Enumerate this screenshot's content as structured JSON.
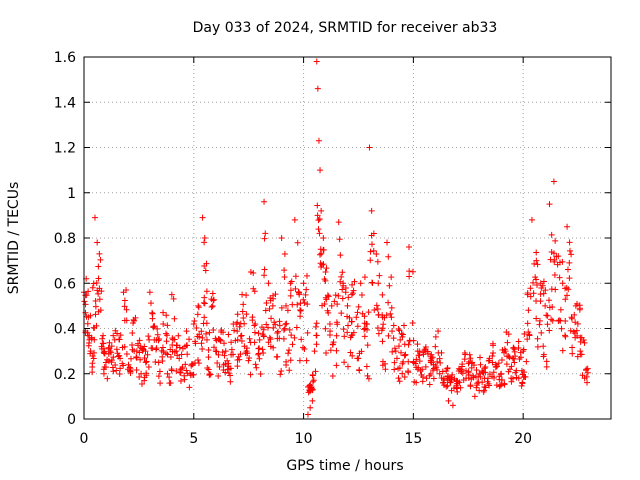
{
  "chart_data": {
    "type": "scatter",
    "title": "Day 033 of 2024, SRMTID for receiver ab33",
    "xlabel": "GPS time / hours",
    "ylabel": "SRMTID / TECUs",
    "xlim": [
      0,
      24
    ],
    "ylim": [
      0,
      1.6
    ],
    "x_ticks": [
      0,
      5,
      10,
      15,
      20
    ],
    "x_tick_labels": [
      "0",
      "5",
      "10",
      "15",
      "20"
    ],
    "y_ticks": [
      0,
      0.2,
      0.4,
      0.6,
      0.8,
      1.0,
      1.2,
      1.4,
      1.6
    ],
    "y_tick_labels": [
      "0",
      "0.2",
      "0.4",
      "0.6",
      "0.8",
      "1",
      "1.2",
      "1.4",
      "1.6"
    ],
    "grid": true,
    "marker": "+",
    "marker_color": "#ff0000",
    "series": [
      {
        "name": "SRMTID",
        "x": [
          0.0,
          0.1,
          0.2,
          0.3,
          0.4,
          0.5,
          0.6,
          0.7,
          0.8,
          0.9,
          1.0,
          1.2,
          1.4,
          1.6,
          1.8,
          2.0,
          2.2,
          2.4,
          2.6,
          2.8,
          3.0,
          3.2,
          3.4,
          3.6,
          3.8,
          4.0,
          4.2,
          4.4,
          4.6,
          4.8,
          5.0,
          5.2,
          5.4,
          5.5,
          5.6,
          5.8,
          6.0,
          6.2,
          6.4,
          6.6,
          6.8,
          7.0,
          7.2,
          7.4,
          7.6,
          7.8,
          8.0,
          8.2,
          8.4,
          8.6,
          8.8,
          9.0,
          9.2,
          9.4,
          9.6,
          9.8,
          10.0,
          10.2,
          10.3,
          10.4,
          10.5,
          10.6,
          10.65,
          10.7,
          10.75,
          10.8,
          10.9,
          11.0,
          11.2,
          11.4,
          11.6,
          11.8,
          12.0,
          12.2,
          12.4,
          12.6,
          12.8,
          13.0,
          13.1,
          13.2,
          13.4,
          13.6,
          13.8,
          14.0,
          14.2,
          14.4,
          14.6,
          14.8,
          15.0,
          15.2,
          15.4,
          15.6,
          15.8,
          16.0,
          16.2,
          16.4,
          16.6,
          16.8,
          17.0,
          17.2,
          17.4,
          17.6,
          17.8,
          18.0,
          18.2,
          18.4,
          18.6,
          18.8,
          19.0,
          19.2,
          19.4,
          19.6,
          19.8,
          20.0,
          20.2,
          20.4,
          20.6,
          20.8,
          21.0,
          21.2,
          21.4,
          21.6,
          21.8,
          22.0,
          22.2,
          22.4,
          22.6,
          22.8
        ],
        "y": [
          0.56,
          0.62,
          0.45,
          0.3,
          0.58,
          0.89,
          0.78,
          0.73,
          0.32,
          0.22,
          0.25,
          0.3,
          0.35,
          0.28,
          0.56,
          0.22,
          0.38,
          0.27,
          0.2,
          0.3,
          0.56,
          0.35,
          0.25,
          0.47,
          0.2,
          0.55,
          0.3,
          0.22,
          0.32,
          0.14,
          0.42,
          0.5,
          0.89,
          0.8,
          0.35,
          0.53,
          0.3,
          0.35,
          0.28,
          0.22,
          0.42,
          0.35,
          0.55,
          0.3,
          0.65,
          0.42,
          0.35,
          0.96,
          0.6,
          0.5,
          0.38,
          0.8,
          0.5,
          0.6,
          0.88,
          0.55,
          0.6,
          0.02,
          0.05,
          0.08,
          0.3,
          1.58,
          1.46,
          1.23,
          1.1,
          0.92,
          0.8,
          0.65,
          0.42,
          0.52,
          0.87,
          0.6,
          0.5,
          0.55,
          0.45,
          0.6,
          0.4,
          1.2,
          0.92,
          0.82,
          0.6,
          0.45,
          0.78,
          0.45,
          0.3,
          0.35,
          0.28,
          0.76,
          0.25,
          0.3,
          0.22,
          0.18,
          0.25,
          0.32,
          0.2,
          0.15,
          0.08,
          0.06,
          0.12,
          0.22,
          0.18,
          0.15,
          0.1,
          0.2,
          0.12,
          0.18,
          0.25,
          0.15,
          0.2,
          0.3,
          0.22,
          0.25,
          0.18,
          0.3,
          0.55,
          0.88,
          0.7,
          0.6,
          0.5,
          0.95,
          1.05,
          0.72,
          0.6,
          0.85,
          0.45,
          0.5,
          0.3,
          0.18
        ],
        "spread": [
          0.12,
          0.15,
          0.12,
          0.1,
          0.18,
          0.2,
          0.18,
          0.2,
          0.1,
          0.08,
          0.08,
          0.1,
          0.1,
          0.1,
          0.15,
          0.1,
          0.12,
          0.1,
          0.1,
          0.1,
          0.15,
          0.1,
          0.1,
          0.12,
          0.08,
          0.15,
          0.1,
          0.08,
          0.1,
          0.06,
          0.12,
          0.15,
          0.2,
          0.2,
          0.12,
          0.15,
          0.1,
          0.1,
          0.1,
          0.1,
          0.12,
          0.12,
          0.15,
          0.1,
          0.18,
          0.15,
          0.12,
          0.25,
          0.2,
          0.18,
          0.15,
          0.22,
          0.18,
          0.2,
          0.22,
          0.18,
          0.2,
          0.02,
          0.03,
          0.04,
          0.15,
          0.1,
          0.1,
          0.1,
          0.15,
          0.2,
          0.2,
          0.2,
          0.18,
          0.2,
          0.22,
          0.2,
          0.2,
          0.2,
          0.18,
          0.2,
          0.18,
          0.2,
          0.2,
          0.2,
          0.2,
          0.15,
          0.2,
          0.15,
          0.12,
          0.12,
          0.1,
          0.2,
          0.1,
          0.1,
          0.08,
          0.08,
          0.1,
          0.1,
          0.08,
          0.06,
          0.04,
          0.03,
          0.05,
          0.08,
          0.08,
          0.06,
          0.05,
          0.08,
          0.06,
          0.08,
          0.1,
          0.06,
          0.08,
          0.1,
          0.08,
          0.1,
          0.08,
          0.1,
          0.18,
          0.2,
          0.2,
          0.18,
          0.18,
          0.22,
          0.2,
          0.2,
          0.18,
          0.22,
          0.15,
          0.15,
          0.1,
          0.06
        ],
        "count_per_x": [
          6,
          6,
          6,
          6,
          6,
          5,
          5,
          5,
          6,
          6,
          8,
          8,
          8,
          8,
          8,
          8,
          8,
          8,
          8,
          8,
          8,
          8,
          8,
          8,
          8,
          8,
          8,
          8,
          8,
          8,
          8,
          8,
          6,
          6,
          8,
          8,
          8,
          8,
          8,
          8,
          8,
          8,
          8,
          8,
          8,
          8,
          8,
          8,
          8,
          8,
          8,
          8,
          8,
          8,
          8,
          8,
          8,
          6,
          6,
          6,
          6,
          2,
          2,
          3,
          3,
          4,
          6,
          8,
          8,
          8,
          8,
          8,
          8,
          8,
          8,
          8,
          8,
          3,
          4,
          6,
          8,
          8,
          6,
          8,
          8,
          8,
          8,
          6,
          8,
          8,
          8,
          8,
          8,
          8,
          8,
          8,
          8,
          8,
          8,
          8,
          8,
          8,
          8,
          8,
          8,
          8,
          8,
          8,
          8,
          8,
          8,
          8,
          8,
          8,
          8,
          8,
          8,
          8,
          8,
          8,
          8,
          8,
          8,
          8,
          8,
          8,
          8,
          6
        ]
      }
    ]
  }
}
